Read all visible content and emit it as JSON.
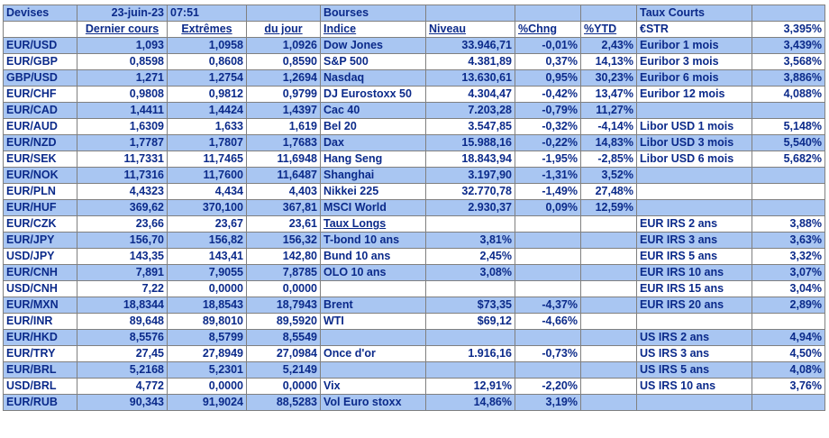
{
  "header": {
    "devises": "Devises",
    "date": "23-juin-23",
    "time": "07:51",
    "bourses": "Bourses",
    "taux_courts": "Taux Courts"
  },
  "subheader": {
    "dernier_cours": "Dernier cours",
    "extremes": "Extrêmes",
    "du_jour": "du jour",
    "indice": "Indice",
    "niveau": "Niveau",
    "chng": "%Chng",
    "ytd": "%YTD",
    "estr_label": "€STR",
    "estr_value": "3,395%"
  },
  "rows": [
    {
      "fx": "EUR/USD",
      "last": "1,093",
      "hi": "1,0958",
      "lo": "1,0926",
      "idx": "Dow Jones",
      "lvl": "33.946,71",
      "chg": "-0,01%",
      "ytd": "2,43%",
      "rate": "Euribor 1 mois",
      "rv": "3,439%"
    },
    {
      "fx": "EUR/GBP",
      "last": "0,8598",
      "hi": "0,8608",
      "lo": "0,8590",
      "idx": "S&P 500",
      "lvl": "4.381,89",
      "chg": "0,37%",
      "ytd": "14,13%",
      "rate": "Euribor 3 mois",
      "rv": "3,568%"
    },
    {
      "fx": "GBP/USD",
      "last": "1,271",
      "hi": "1,2754",
      "lo": "1,2694",
      "idx": "Nasdaq",
      "lvl": "13.630,61",
      "chg": "0,95%",
      "ytd": "30,23%",
      "rate": "Euribor 6 mois",
      "rv": "3,886%"
    },
    {
      "fx": "EUR/CHF",
      "last": "0,9808",
      "hi": "0,9812",
      "lo": "0,9799",
      "idx": "DJ Eurostoxx 50",
      "lvl": "4.304,47",
      "chg": "-0,42%",
      "ytd": "13,47%",
      "rate": "Euribor 12 mois",
      "rv": "4,088%"
    },
    {
      "fx": "EUR/CAD",
      "last": "1,4411",
      "hi": "1,4424",
      "lo": "1,4397",
      "idx": "Cac 40",
      "lvl": "7.203,28",
      "chg": "-0,79%",
      "ytd": "11,27%",
      "rate": "",
      "rv": ""
    },
    {
      "fx": "EUR/AUD",
      "last": "1,6309",
      "hi": "1,633",
      "lo": "1,619",
      "idx": "Bel 20",
      "lvl": "3.547,85",
      "chg": "-0,32%",
      "ytd": "-4,14%",
      "rate": "Libor USD 1 mois",
      "rv": "5,148%"
    },
    {
      "fx": "EUR/NZD",
      "last": "1,7787",
      "hi": "1,7807",
      "lo": "1,7683",
      "idx": "Dax",
      "lvl": "15.988,16",
      "chg": "-0,22%",
      "ytd": "14,83%",
      "rate": "Libor USD 3 mois",
      "rv": "5,540%"
    },
    {
      "fx": "EUR/SEK",
      "last": "11,7331",
      "hi": "11,7465",
      "lo": "11,6948",
      "idx": "Hang Seng",
      "lvl": "18.843,94",
      "chg": "-1,95%",
      "ytd": "-2,85%",
      "rate": "Libor USD 6 mois",
      "rv": "5,682%"
    },
    {
      "fx": "EUR/NOK",
      "last": "11,7316",
      "hi": "11,7600",
      "lo": "11,6487",
      "idx": "Shanghai",
      "lvl": "3.197,90",
      "chg": "-1,31%",
      "ytd": "3,52%",
      "rate": "",
      "rv": ""
    },
    {
      "fx": "EUR/PLN",
      "last": "4,4323",
      "hi": "4,434",
      "lo": "4,403",
      "idx": "Nikkei 225",
      "lvl": "32.770,78",
      "chg": "-1,49%",
      "ytd": "27,48%",
      "rate": "",
      "rv": ""
    },
    {
      "fx": "EUR/HUF",
      "last": "369,62",
      "hi": "370,100",
      "lo": "367,81",
      "idx": "MSCI World",
      "lvl": "2.930,37",
      "chg": "0,09%",
      "ytd": "12,59%",
      "rate": "",
      "rv": ""
    },
    {
      "fx": "EUR/CZK",
      "last": "23,66",
      "hi": "23,67",
      "lo": "23,61",
      "idx": "Taux Longs",
      "lvl": "",
      "chg": "",
      "ytd": "",
      "rate": "EUR IRS 2 ans",
      "rv": "3,88%"
    },
    {
      "fx": "EUR/JPY",
      "last": "156,70",
      "hi": "156,82",
      "lo": "156,32",
      "idx": "T-bond 10 ans",
      "lvl": "3,81%",
      "chg": "",
      "ytd": "",
      "rate": "EUR IRS 3 ans",
      "rv": "3,63%"
    },
    {
      "fx": "USD/JPY",
      "last": "143,35",
      "hi": "143,41",
      "lo": "142,80",
      "idx": "Bund 10 ans",
      "lvl": "2,45%",
      "chg": "",
      "ytd": "",
      "rate": "EUR IRS 5 ans",
      "rv": "3,32%"
    },
    {
      "fx": "EUR/CNH",
      "last": "7,891",
      "hi": "7,9055",
      "lo": "7,8785",
      "idx": "OLO 10 ans",
      "lvl": "3,08%",
      "chg": "",
      "ytd": "",
      "rate": "EUR IRS 10 ans",
      "rv": "3,07%"
    },
    {
      "fx": "USD/CNH",
      "last": "7,22",
      "hi": "0,0000",
      "lo": "0,0000",
      "idx": "",
      "lvl": "",
      "chg": "",
      "ytd": "",
      "rate": "EUR IRS 15 ans",
      "rv": "3,04%"
    },
    {
      "fx": "EUR/MXN",
      "last": "18,8344",
      "hi": "18,8543",
      "lo": "18,7943",
      "idx": "Brent",
      "lvl": "$73,35",
      "chg": "-4,37%",
      "ytd": "",
      "rate": "EUR IRS 20 ans",
      "rv": "2,89%"
    },
    {
      "fx": "EUR/INR",
      "last": "89,648",
      "hi": "89,8010",
      "lo": "89,5920",
      "idx": "WTI",
      "lvl": "$69,12",
      "chg": "-4,66%",
      "ytd": "",
      "rate": "",
      "rv": ""
    },
    {
      "fx": "EUR/HKD",
      "last": "8,5576",
      "hi": "8,5799",
      "lo": "8,5549",
      "idx": "",
      "lvl": "",
      "chg": "",
      "ytd": "",
      "rate": "US IRS 2 ans",
      "rv": "4,94%"
    },
    {
      "fx": "EUR/TRY",
      "last": "27,45",
      "hi": "27,8949",
      "lo": "27,0984",
      "idx": "Once d'or",
      "lvl": "1.916,16",
      "chg": "-0,73%",
      "ytd": "",
      "rate": "US IRS 3 ans",
      "rv": "4,50%"
    },
    {
      "fx": "EUR/BRL",
      "last": "5,2168",
      "hi": "5,2301",
      "lo": "5,2149",
      "idx": "",
      "lvl": "",
      "chg": "",
      "ytd": "",
      "rate": "US IRS 5 ans",
      "rv": "4,08%"
    },
    {
      "fx": "USD/BRL",
      "last": "4,772",
      "hi": "0,0000",
      "lo": "0,0000",
      "idx": "Vix",
      "lvl": "12,91%",
      "chg": "-2,20%",
      "ytd": "",
      "rate": "US IRS 10 ans",
      "rv": "3,76%"
    },
    {
      "fx": "EUR/RUB",
      "last": "90,343",
      "hi": "91,9024",
      "lo": "88,5283",
      "idx": "Vol Euro stoxx",
      "lvl": "14,86%",
      "chg": "3,19%",
      "ytd": "",
      "rate": "",
      "rv": ""
    }
  ]
}
